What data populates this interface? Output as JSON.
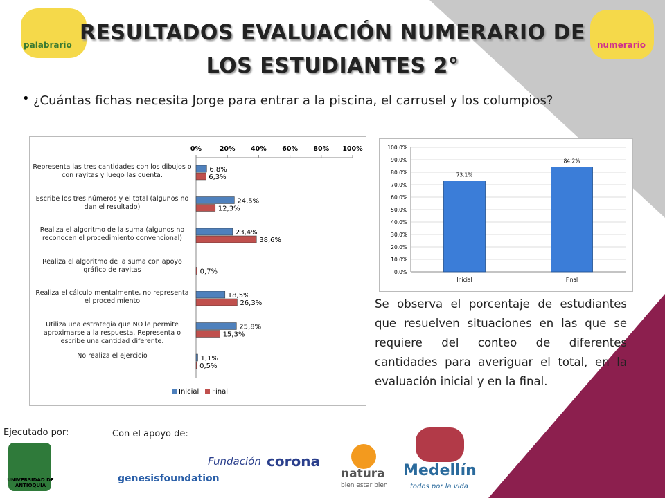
{
  "header": {
    "title_lines": [
      "RESULTADOS EVALUACIÓN NUMERARIO DE",
      "LOS ESTUDIANTES 2°"
    ]
  },
  "question": "¿Cuántas fichas necesita Jorge para entrar a la piscina, el carrusel y los columpios?",
  "observation": "Se observa el porcentaje de estudiantes que resuelven situaciones en las que se requiere del conteo de diferentes cantidades para averiguar el total, en la evaluación inicial y en la final.",
  "footer": {
    "executed_by": "Ejecutado por:",
    "support": "Con el apoyo de:",
    "logos": [
      "palabrario",
      "numerario",
      "UNIVERSIDAD DE ANTIOQUIA",
      "genesisfoundation",
      "Fundación",
      "corona",
      "natura",
      "bien estar bien",
      "Medellín",
      "todos por la vida"
    ]
  },
  "chart_data": [
    {
      "type": "hbar",
      "categories": [
        "Representa las tres cantidades con los dibujos o con rayitas  y luego las cuenta.",
        "Escribe los tres números y el total (algunos no dan el resultado)",
        "Realiza el algoritmo de la suma (algunos no reconocen el procedimiento convencional)",
        "Realiza el algoritmo de la suma con apoyo gráfico de rayitas",
        "Realiza el cálculo mentalmente, no representa el procedimiento",
        "Utiliza una estrategia que NO le permite aproximarse a la respuesta. Representa o escribe una cantidad diferente.",
        "No realiza el ejercicio"
      ],
      "series": [
        {
          "name": "Inicial",
          "color": "#4f81bd",
          "values": [
            6.8,
            24.5,
            23.4,
            null,
            18.5,
            25.8,
            1.1
          ],
          "value_labels": [
            "6,8%",
            "24,5%",
            "23,4%",
            null,
            "18,5%",
            "25,8%",
            "1,1%"
          ]
        },
        {
          "name": "Final",
          "color": "#c0504d",
          "values": [
            6.3,
            12.3,
            38.6,
            0.7,
            26.3,
            15.3,
            0.5
          ],
          "value_labels": [
            "6,3%",
            "12,3%",
            "38,6%",
            "0,7%",
            "26,3%",
            "15,3%",
            "0,5%"
          ]
        }
      ],
      "xlim": [
        0,
        100
      ],
      "xticks": [
        {
          "value": 0,
          "label": "0%"
        },
        {
          "value": 20,
          "label": "20%"
        },
        {
          "value": 40,
          "label": "40%"
        },
        {
          "value": 60,
          "label": "60%"
        },
        {
          "value": 80,
          "label": "80%"
        },
        {
          "value": 100,
          "label": "100%"
        }
      ],
      "legend": "bottom"
    },
    {
      "type": "bar",
      "categories": [
        "Inicial",
        "Final"
      ],
      "values": [
        73.1,
        84.2
      ],
      "value_labels": [
        "73.1%",
        "84.2%"
      ],
      "color": "#3b7dd8",
      "ylim": [
        0,
        100
      ],
      "yticks": [
        {
          "value": 0,
          "label": "0.0%"
        },
        {
          "value": 10,
          "label": "10.0%"
        },
        {
          "value": 20,
          "label": "20.0%"
        },
        {
          "value": 30,
          "label": "30.0%"
        },
        {
          "value": 40,
          "label": "40.0%"
        },
        {
          "value": 50,
          "label": "50.0%"
        },
        {
          "value": 60,
          "label": "60.0%"
        },
        {
          "value": 70,
          "label": "70.0%"
        },
        {
          "value": 80,
          "label": "80.0%"
        },
        {
          "value": 90,
          "label": "90.0%"
        },
        {
          "value": 100,
          "label": "100.0%"
        }
      ],
      "grid": true
    }
  ]
}
